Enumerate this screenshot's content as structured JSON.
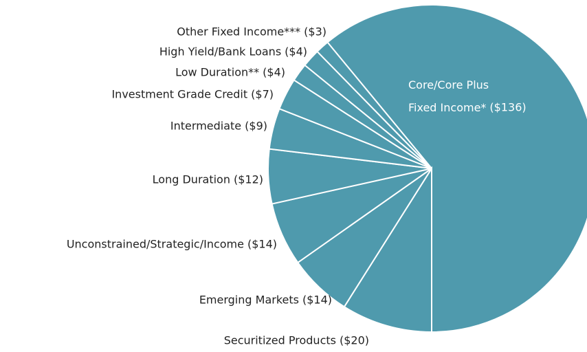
{
  "chart_data": {
    "type": "pie",
    "color": "#4f9aad",
    "categories": [
      "Core/Core Plus Fixed Income*",
      "Securitized Products",
      "Emerging Markets",
      "Unconstrained/Strategic/Income",
      "Long Duration",
      "Intermediate",
      "Investment Grade Credit",
      "Low Duration**",
      "High Yield/Bank Loans",
      "Other Fixed Income***"
    ],
    "values": [
      136,
      20,
      14,
      14,
      12,
      9,
      7,
      4,
      4,
      3
    ],
    "value_labels": [
      "($136)",
      "($20)",
      "($14)",
      "($14)",
      "($12)",
      "($9)",
      "($7)",
      "($4)",
      "($4)",
      "($3)"
    ]
  }
}
